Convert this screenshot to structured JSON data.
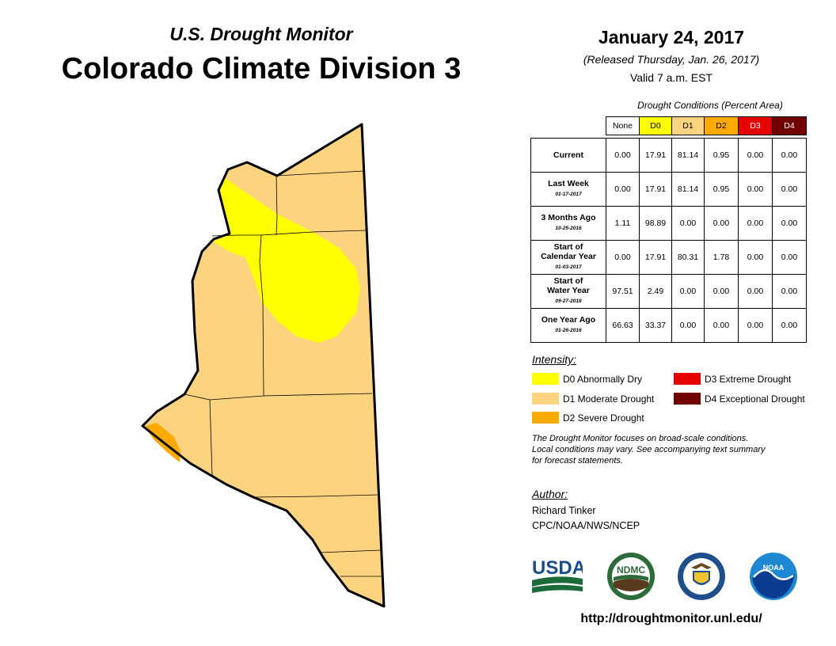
{
  "header": {
    "subtitle": "U.S. Drought Monitor",
    "title": "Colorado Climate Division 3",
    "date": "January 24, 2017",
    "released": "(Released Thursday, Jan. 26, 2017)",
    "valid": "Valid 7 a.m. EST"
  },
  "table": {
    "caption": "Drought Conditions (Percent Area)",
    "columns": [
      "None",
      "D0",
      "D1",
      "D2",
      "D3",
      "D4"
    ],
    "column_colors": [
      "#ffffff",
      "#ffff00",
      "#fcd37f",
      "#ffaa00",
      "#e60000",
      "#730000"
    ],
    "column_text_colors": [
      "#000000",
      "#000000",
      "#000000",
      "#000000",
      "#ffffff",
      "#ffffff"
    ],
    "rows": [
      {
        "label": "Current",
        "label2": "",
        "date": "",
        "values": [
          "0.00",
          "17.91",
          "81.14",
          "0.95",
          "0.00",
          "0.00"
        ]
      },
      {
        "label": "Last Week",
        "label2": "",
        "date": "01-17-2017",
        "values": [
          "0.00",
          "17.91",
          "81.14",
          "0.95",
          "0.00",
          "0.00"
        ]
      },
      {
        "label": "3 Months Ago",
        "label2": "",
        "date": "10-25-2016",
        "values": [
          "1.11",
          "98.89",
          "0.00",
          "0.00",
          "0.00",
          "0.00"
        ]
      },
      {
        "label": "Start of",
        "label2": "Calendar Year",
        "date": "01-03-2017",
        "values": [
          "0.00",
          "17.91",
          "80.31",
          "1.78",
          "0.00",
          "0.00"
        ]
      },
      {
        "label": "Start of",
        "label2": "Water Year",
        "date": "09-27-2016",
        "values": [
          "97.51",
          "2.49",
          "0.00",
          "0.00",
          "0.00",
          "0.00"
        ]
      },
      {
        "label": "One Year Ago",
        "label2": "",
        "date": "01-26-2016",
        "values": [
          "66.63",
          "33.37",
          "0.00",
          "0.00",
          "0.00",
          "0.00"
        ]
      }
    ]
  },
  "legend": {
    "title": "Intensity:",
    "items": [
      {
        "label": "D0 Abnormally Dry",
        "color": "#ffff00"
      },
      {
        "label": "D1 Moderate Drought",
        "color": "#fcd37f"
      },
      {
        "label": "D2 Severe Drought",
        "color": "#ffaa00"
      },
      {
        "label": "D3 Extreme Drought",
        "color": "#e60000"
      },
      {
        "label": "D4 Exceptional Drought",
        "color": "#730000"
      }
    ]
  },
  "note": {
    "line1": "The Drought Monitor focuses on broad-scale conditions.",
    "line2": "Local conditions may vary. See accompanying text summary",
    "line3": "for forecast statements."
  },
  "author": {
    "title": "Author:",
    "name": "Richard Tinker",
    "org": "CPC/NOAA/NWS/NCEP"
  },
  "logos": {
    "usda": "USDA",
    "ndmc": "NDMC",
    "noaa": "NOAA"
  },
  "url": "http://droughtmonitor.unl.edu/",
  "map_colors": {
    "d0": "#ffff00",
    "d1": "#fcd37f",
    "d2": "#ffaa00"
  }
}
